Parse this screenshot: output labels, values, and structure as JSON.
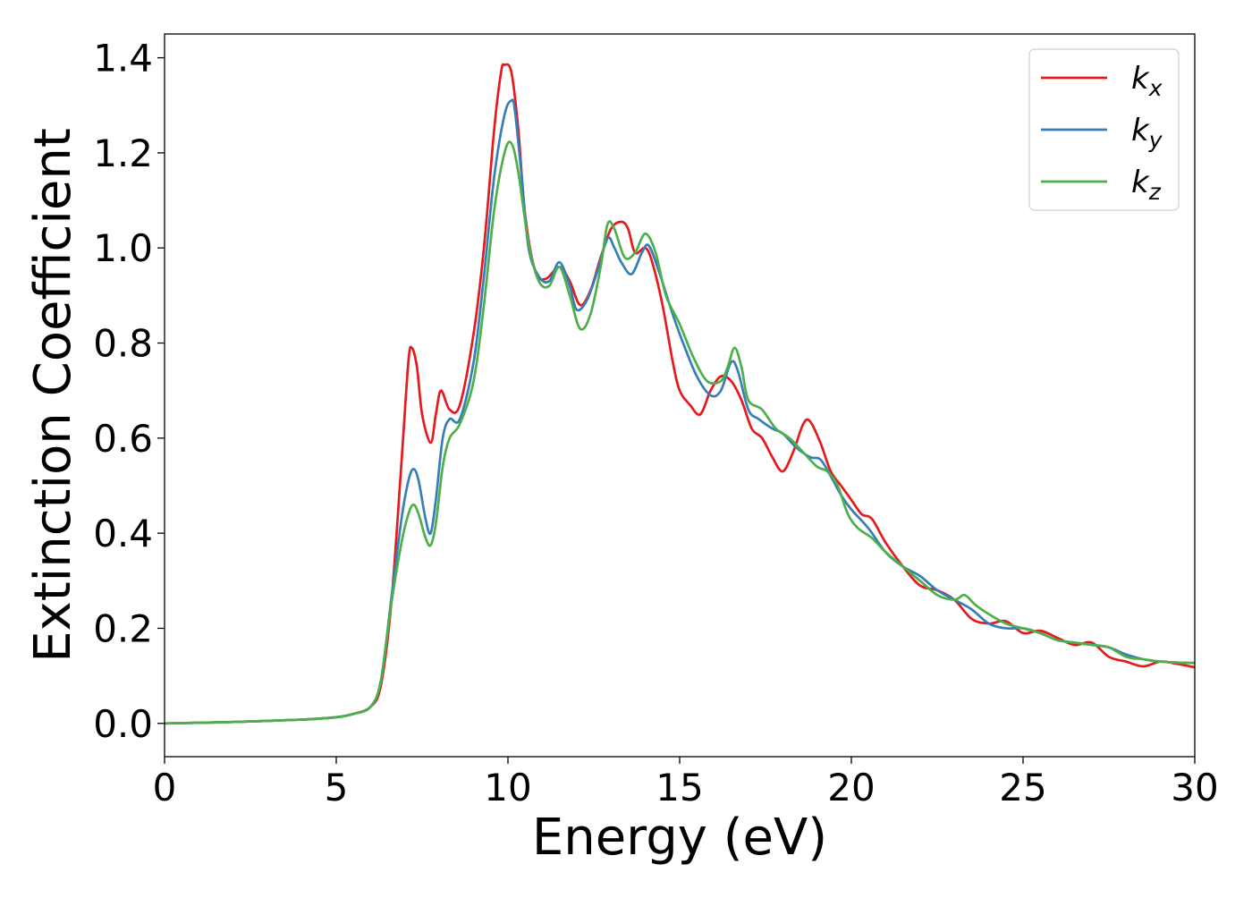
{
  "chart_data": {
    "type": "line",
    "title": "",
    "xlabel": "Energy (eV)",
    "ylabel": "Extinction Coefficient",
    "xlim": [
      0,
      30
    ],
    "ylim": [
      -0.07,
      1.45
    ],
    "xticks": [
      0,
      5,
      10,
      15,
      20,
      25,
      30
    ],
    "xtick_labels": [
      "0",
      "5",
      "10",
      "15",
      "20",
      "25",
      "30"
    ],
    "yticks": [
      0.0,
      0.2,
      0.4,
      0.6,
      0.8,
      1.0,
      1.2,
      1.4
    ],
    "ytick_labels": [
      "0.0",
      "0.2",
      "0.4",
      "0.6",
      "0.8",
      "1.0",
      "1.2",
      "1.4"
    ],
    "grid": false,
    "legend_position": "top-right",
    "series": [
      {
        "name": "k",
        "subscript": "x",
        "color": "#e41a1c",
        "x": [
          0,
          2,
          4,
          5,
          5.5,
          6,
          6.3,
          6.6,
          6.9,
          7.1,
          7.2,
          7.35,
          7.5,
          7.75,
          7.9,
          8.05,
          8.3,
          8.6,
          9.0,
          9.3,
          9.6,
          9.8,
          9.9,
          10.1,
          10.3,
          10.5,
          10.8,
          11.1,
          11.5,
          11.8,
          12.1,
          12.4,
          12.7,
          13.0,
          13.3,
          13.5,
          13.7,
          14.0,
          14.2,
          14.5,
          14.8,
          15.0,
          15.3,
          15.6,
          15.9,
          16.2,
          16.5,
          16.8,
          17.1,
          17.4,
          17.7,
          18.0,
          18.3,
          18.6,
          18.8,
          19.1,
          19.4,
          19.7,
          20.0,
          20.3,
          20.6,
          21.0,
          21.5,
          22.0,
          22.5,
          23.0,
          23.5,
          24.0,
          24.5,
          25.0,
          25.5,
          26.0,
          26.5,
          27.0,
          27.5,
          28.0,
          28.5,
          29.0,
          29.5,
          30.0
        ],
        "y": [
          0.0,
          0.003,
          0.008,
          0.013,
          0.02,
          0.035,
          0.08,
          0.25,
          0.55,
          0.76,
          0.79,
          0.75,
          0.65,
          0.59,
          0.65,
          0.7,
          0.66,
          0.67,
          0.82,
          1.0,
          1.25,
          1.37,
          1.385,
          1.37,
          1.25,
          1.07,
          0.95,
          0.935,
          0.96,
          0.93,
          0.88,
          0.91,
          0.98,
          1.04,
          1.055,
          1.04,
          0.99,
          1.0,
          0.97,
          0.88,
          0.76,
          0.7,
          0.67,
          0.65,
          0.7,
          0.73,
          0.72,
          0.68,
          0.62,
          0.6,
          0.56,
          0.53,
          0.57,
          0.63,
          0.635,
          0.59,
          0.53,
          0.5,
          0.47,
          0.44,
          0.43,
          0.38,
          0.33,
          0.29,
          0.28,
          0.26,
          0.22,
          0.21,
          0.215,
          0.19,
          0.195,
          0.18,
          0.165,
          0.17,
          0.14,
          0.13,
          0.12,
          0.13,
          0.125,
          0.118
        ]
      },
      {
        "name": "k",
        "subscript": "y",
        "color": "#377eb8",
        "x": [
          0,
          2,
          4,
          5,
          5.5,
          6,
          6.3,
          6.6,
          6.9,
          7.1,
          7.25,
          7.4,
          7.6,
          7.75,
          7.9,
          8.1,
          8.3,
          8.6,
          9.0,
          9.3,
          9.6,
          9.9,
          10.1,
          10.2,
          10.4,
          10.6,
          10.9,
          11.2,
          11.5,
          11.8,
          12.0,
          12.3,
          12.6,
          12.9,
          13.1,
          13.3,
          13.6,
          13.9,
          14.1,
          14.4,
          14.8,
          15.1,
          15.5,
          15.9,
          16.2,
          16.5,
          16.7,
          17.0,
          17.3,
          17.7,
          18.0,
          18.4,
          18.8,
          19.1,
          19.4,
          19.7,
          20.0,
          20.5,
          21.0,
          21.5,
          22.0,
          22.5,
          23.0,
          23.5,
          24.0,
          24.5,
          25.0,
          25.5,
          26.0,
          26.5,
          27.0,
          27.5,
          28.0,
          28.5,
          29.0,
          29.5,
          30.0
        ],
        "y": [
          0.0,
          0.003,
          0.008,
          0.013,
          0.02,
          0.035,
          0.09,
          0.26,
          0.43,
          0.51,
          0.535,
          0.51,
          0.43,
          0.4,
          0.47,
          0.6,
          0.64,
          0.64,
          0.76,
          0.94,
          1.15,
          1.28,
          1.31,
          1.29,
          1.15,
          1.0,
          0.94,
          0.93,
          0.97,
          0.92,
          0.87,
          0.89,
          0.95,
          1.02,
          1.0,
          0.97,
          0.945,
          0.99,
          1.005,
          0.95,
          0.86,
          0.8,
          0.73,
          0.69,
          0.7,
          0.76,
          0.74,
          0.66,
          0.64,
          0.62,
          0.61,
          0.58,
          0.56,
          0.555,
          0.52,
          0.48,
          0.45,
          0.41,
          0.36,
          0.33,
          0.31,
          0.28,
          0.26,
          0.24,
          0.21,
          0.2,
          0.2,
          0.19,
          0.175,
          0.17,
          0.165,
          0.16,
          0.145,
          0.135,
          0.13,
          0.128,
          0.127
        ]
      },
      {
        "name": "k",
        "subscript": "z",
        "color": "#4daf4a",
        "x": [
          0,
          2,
          4,
          5,
          5.5,
          6,
          6.3,
          6.6,
          6.9,
          7.1,
          7.25,
          7.4,
          7.6,
          7.75,
          7.9,
          8.1,
          8.3,
          8.6,
          9.0,
          9.3,
          9.6,
          9.9,
          10.1,
          10.3,
          10.6,
          10.9,
          11.2,
          11.5,
          11.8,
          12.1,
          12.4,
          12.7,
          12.9,
          13.1,
          13.4,
          13.7,
          14.0,
          14.3,
          14.6,
          15.0,
          15.4,
          15.8,
          16.2,
          16.4,
          16.6,
          16.8,
          17.0,
          17.4,
          17.8,
          18.2,
          18.6,
          19.0,
          19.3,
          19.6,
          19.9,
          20.2,
          20.6,
          21.0,
          21.5,
          22.0,
          22.5,
          23.0,
          23.3,
          23.6,
          24.0,
          24.5,
          25.0,
          25.5,
          26.0,
          26.5,
          27.0,
          27.5,
          28.0,
          28.5,
          29.0,
          29.5,
          30.0
        ],
        "y": [
          0.0,
          0.003,
          0.008,
          0.013,
          0.02,
          0.035,
          0.09,
          0.25,
          0.38,
          0.44,
          0.46,
          0.44,
          0.39,
          0.375,
          0.42,
          0.54,
          0.6,
          0.63,
          0.72,
          0.88,
          1.08,
          1.2,
          1.22,
          1.16,
          1.01,
          0.93,
          0.92,
          0.96,
          0.9,
          0.83,
          0.86,
          0.96,
          1.05,
          1.04,
          0.98,
          0.99,
          1.03,
          0.99,
          0.9,
          0.84,
          0.77,
          0.72,
          0.72,
          0.75,
          0.79,
          0.75,
          0.68,
          0.66,
          0.62,
          0.6,
          0.57,
          0.54,
          0.53,
          0.5,
          0.44,
          0.41,
          0.39,
          0.36,
          0.33,
          0.3,
          0.27,
          0.26,
          0.27,
          0.25,
          0.23,
          0.21,
          0.2,
          0.19,
          0.175,
          0.17,
          0.165,
          0.16,
          0.14,
          0.135,
          0.13,
          0.128,
          0.127
        ]
      }
    ]
  }
}
